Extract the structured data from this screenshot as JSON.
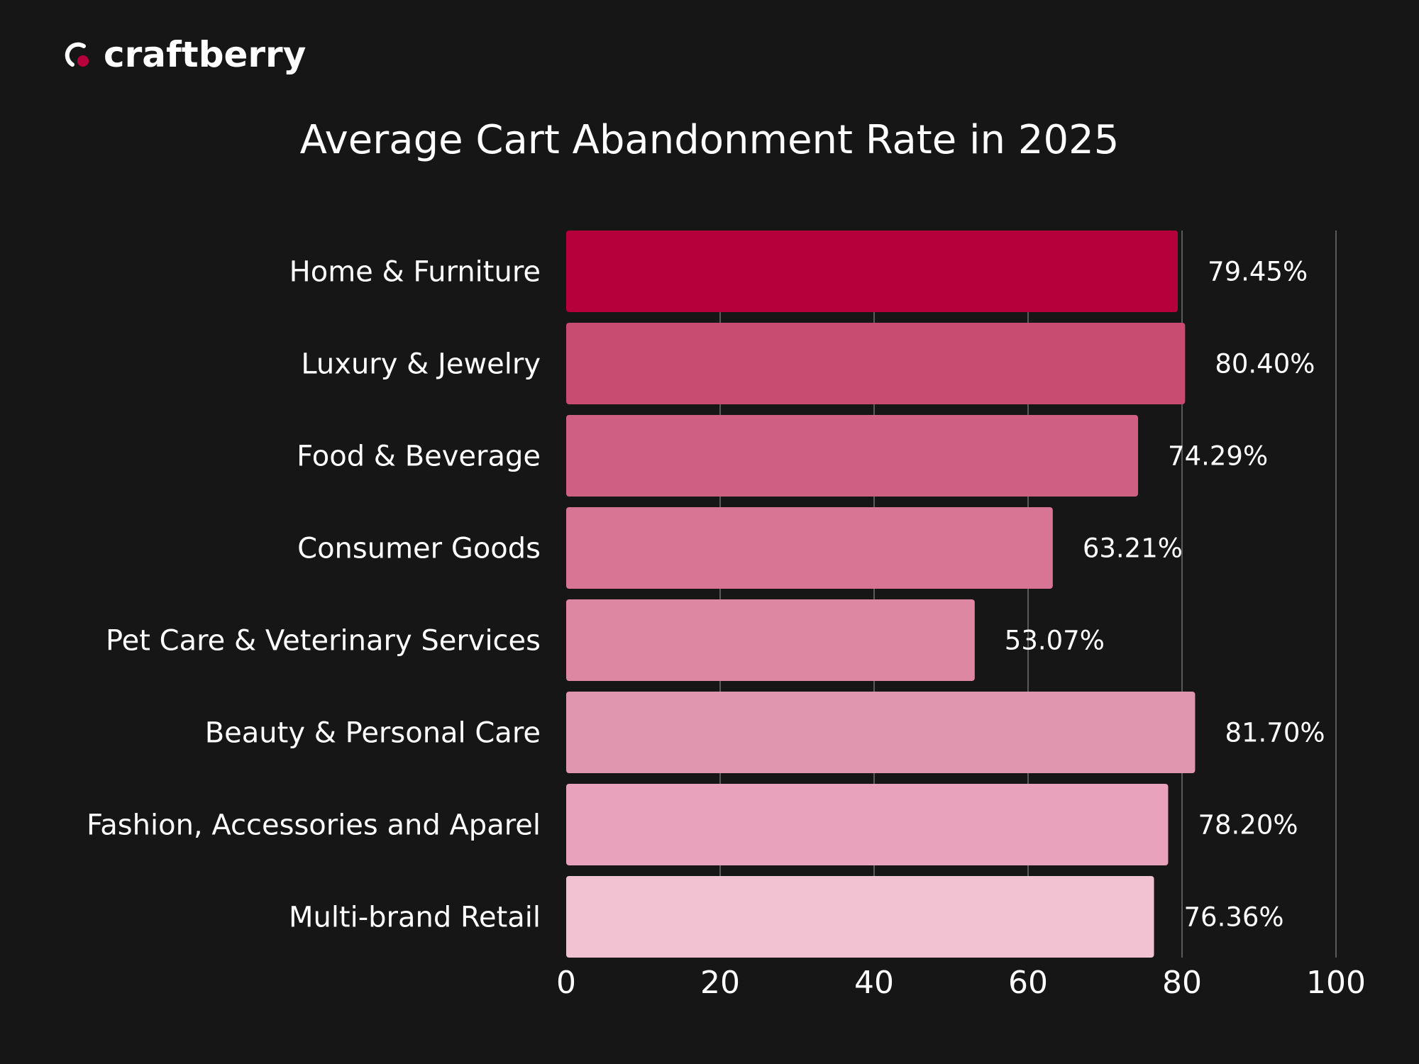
{
  "brand": {
    "name": "craftberry",
    "accent": "#b5003c"
  },
  "chart_data": {
    "type": "bar",
    "orientation": "horizontal",
    "title": "Average Cart Abandonment Rate in 2025",
    "categories": [
      "Home & Furniture",
      "Luxury & Jewelry",
      "Food & Beverage",
      "Consumer Goods",
      "Pet Care & Veterinary Services",
      "Beauty & Personal Care",
      "Fashion, Accessories and Aparel",
      "Multi-brand Retail"
    ],
    "values": [
      79.45,
      80.4,
      74.29,
      63.21,
      53.07,
      81.7,
      78.2,
      76.36
    ],
    "labels": [
      "79.45%",
      "80.40%",
      "74.29%",
      "63.21%",
      "53.07%",
      "81.70%",
      "78.20%",
      "76.36%"
    ],
    "colors": [
      "#b5003c",
      "#c84b72",
      "#d06083",
      "#d87494",
      "#de87a3",
      "#e196b0",
      "#e8a2bc",
      "#f1c2d2"
    ],
    "xlim": [
      0,
      100
    ],
    "xticks": [
      "0",
      "20",
      "40",
      "60",
      "80",
      "100"
    ],
    "grid": true,
    "xlabel": "",
    "ylabel": ""
  }
}
